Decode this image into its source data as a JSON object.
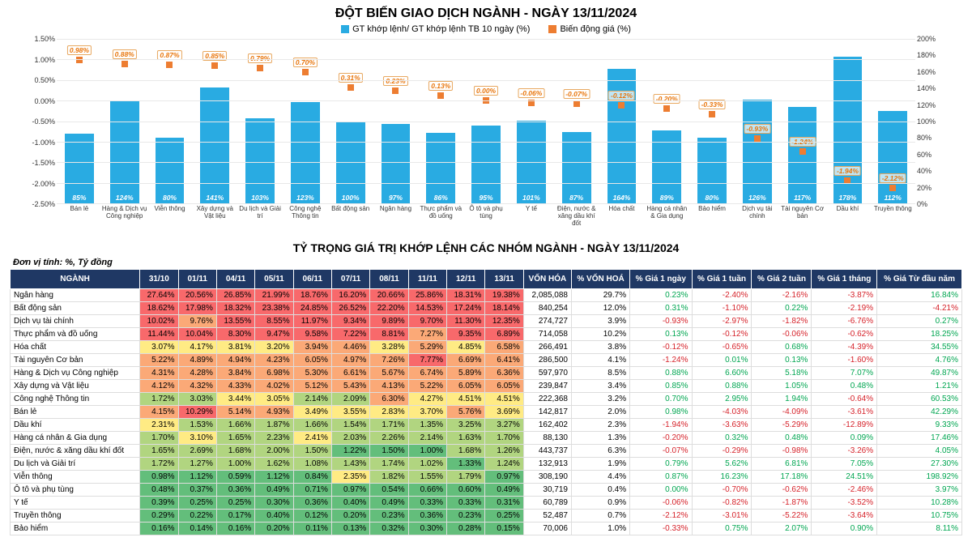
{
  "chart": {
    "title": "ĐỘT BIẾN GIAO DỊCH NGÀNH - NGÀY 13/11/2024",
    "legend1": "GT khớp lệnh/ GT khớp lệnh TB 10 ngày (%)",
    "legend2": "Biến động giá (%)",
    "bar_color": "#29abe2",
    "point_color": "#ed7d31",
    "left_axis": {
      "min": -2.5,
      "max": 1.5,
      "step": 0.5
    },
    "right_axis": {
      "min": 0,
      "max": 200,
      "step": 20
    },
    "categories": [
      "Bán lẻ",
      "Hàng & Dịch vụ Công nghiệp",
      "Viễn thông",
      "Xây dựng và Vật liệu",
      "Du lịch và Giải trí",
      "Công nghệ Thông tin",
      "Bất động sản",
      "Ngân hàng",
      "Thực phẩm và đồ uống",
      "Ô tô và phụ tùng",
      "Y tế",
      "Điện, nước & xăng dầu khí đốt",
      "Hóa chất",
      "Hàng cá nhân & Gia dụng",
      "Bảo hiểm",
      "Dịch vụ tài chính",
      "Tài nguyên Cơ bản",
      "Dầu khí",
      "Truyền thông"
    ],
    "bars_pct": [
      85,
      124,
      80,
      141,
      103,
      123,
      100,
      97,
      86,
      95,
      101,
      87,
      164,
      89,
      80,
      126,
      117,
      178,
      112
    ],
    "price_change": [
      0.98,
      0.88,
      0.87,
      0.85,
      0.79,
      0.7,
      0.31,
      0.23,
      0.13,
      0.0,
      -0.06,
      -0.07,
      -0.12,
      -0.2,
      -0.33,
      -0.93,
      -1.24,
      -1.94,
      -2.12
    ]
  },
  "table": {
    "title": "TỶ TRỌNG GIÁ TRỊ KHỚP LỆNH CÁC NHÓM NGÀNH - NGÀY 13/11/2024",
    "unit": "Đơn vị tính: %, Tỷ đồng",
    "head_cat": "NGÀNH",
    "date_cols": [
      "31/10",
      "01/11",
      "04/11",
      "05/11",
      "06/11",
      "07/11",
      "08/11",
      "11/11",
      "12/11",
      "13/11"
    ],
    "vh_col": "VỐN HÓA",
    "pvh_col": "% VỐN HOÁ",
    "price_cols": [
      "% Giá 1 ngày",
      "% Giá 1 tuần",
      "% Giá 2 tuần",
      "% Giá 1 tháng",
      "% Giá Từ đầu năm"
    ],
    "heat_colors": {
      "high": "#f8696b",
      "mid_high": "#fba977",
      "mid": "#ffeb84",
      "mid_low": "#b1d580",
      "low": "#63be7b"
    },
    "pos_color": "#00a651",
    "neg_color": "#d6222a",
    "rows": [
      {
        "n": "Ngân hàng",
        "d": [
          27.64,
          20.56,
          26.85,
          21.99,
          18.76,
          16.2,
          20.66,
          25.86,
          18.31,
          19.38
        ],
        "vh": "2,085,088",
        "pvh": 29.7,
        "p": [
          0.23,
          -2.4,
          -2.16,
          -3.87,
          16.84
        ]
      },
      {
        "n": "Bất động sản",
        "d": [
          18.62,
          17.98,
          18.32,
          23.38,
          24.85,
          26.52,
          22.2,
          14.53,
          17.24,
          18.14
        ],
        "vh": "840,254",
        "pvh": 12.0,
        "p": [
          0.31,
          -1.1,
          0.22,
          -2.19,
          -4.21
        ]
      },
      {
        "n": "Dịch vụ tài chính",
        "d": [
          10.02,
          9.76,
          13.55,
          8.55,
          11.97,
          9.34,
          9.89,
          9.7,
          11.3,
          12.35
        ],
        "vh": "274,727",
        "pvh": 3.9,
        "p": [
          -0.93,
          -2.97,
          -1.82,
          -6.76,
          0.27
        ]
      },
      {
        "n": "Thực phẩm và đồ uống",
        "d": [
          11.44,
          10.04,
          8.3,
          9.47,
          9.58,
          7.22,
          8.81,
          7.27,
          9.35,
          6.89
        ],
        "vh": "714,058",
        "pvh": 10.2,
        "p": [
          0.13,
          -0.12,
          -0.06,
          -0.62,
          18.25
        ]
      },
      {
        "n": "Hóa chất",
        "d": [
          3.07,
          4.17,
          3.81,
          3.2,
          3.94,
          4.46,
          3.28,
          5.29,
          4.85,
          6.58
        ],
        "vh": "266,491",
        "pvh": 3.8,
        "p": [
          -0.12,
          -0.65,
          0.68,
          -4.39,
          34.55
        ]
      },
      {
        "n": "Tài nguyên Cơ bản",
        "d": [
          5.22,
          4.89,
          4.94,
          4.23,
          6.05,
          4.97,
          7.26,
          7.77,
          6.69,
          6.41
        ],
        "vh": "286,500",
        "pvh": 4.1,
        "p": [
          -1.24,
          0.01,
          0.13,
          -1.6,
          4.76
        ]
      },
      {
        "n": "Hàng & Dịch vụ Công nghiệp",
        "d": [
          4.31,
          4.28,
          3.84,
          6.98,
          5.3,
          6.61,
          5.67,
          6.74,
          5.89,
          6.36
        ],
        "vh": "597,970",
        "pvh": 8.5,
        "p": [
          0.88,
          6.6,
          5.18,
          7.07,
          49.87
        ]
      },
      {
        "n": "Xây dựng và Vật liệu",
        "d": [
          4.12,
          4.32,
          4.33,
          4.02,
          5.12,
          5.43,
          4.13,
          5.22,
          6.05,
          6.05
        ],
        "vh": "239,847",
        "pvh": 3.4,
        "p": [
          0.85,
          0.88,
          1.05,
          0.48,
          1.21
        ]
      },
      {
        "n": "Công nghệ Thông tin",
        "d": [
          1.72,
          3.03,
          3.44,
          3.05,
          2.14,
          2.09,
          6.3,
          4.27,
          4.51,
          4.51
        ],
        "vh": "222,368",
        "pvh": 3.2,
        "p": [
          0.7,
          2.95,
          1.94,
          -0.64,
          60.53
        ]
      },
      {
        "n": "Bán lẻ",
        "d": [
          4.15,
          10.29,
          5.14,
          4.93,
          3.49,
          3.55,
          2.83,
          3.7,
          5.76,
          3.69
        ],
        "vh": "142,817",
        "pvh": 2.0,
        "p": [
          0.98,
          -4.03,
          -4.09,
          -3.61,
          42.29
        ]
      },
      {
        "n": "Dầu khí",
        "d": [
          2.31,
          1.53,
          1.66,
          1.87,
          1.66,
          1.54,
          1.71,
          1.35,
          3.25,
          3.27
        ],
        "vh": "162,402",
        "pvh": 2.3,
        "p": [
          -1.94,
          -3.63,
          -5.29,
          -12.89,
          9.33
        ]
      },
      {
        "n": "Hàng cá nhân & Gia dụng",
        "d": [
          1.7,
          3.1,
          1.65,
          2.23,
          2.41,
          2.03,
          2.26,
          2.14,
          1.63,
          1.7
        ],
        "vh": "88,130",
        "pvh": 1.3,
        "p": [
          -0.2,
          0.32,
          0.48,
          0.09,
          17.46
        ]
      },
      {
        "n": "Điện, nước & xăng dầu khí đốt",
        "d": [
          1.65,
          2.69,
          1.68,
          2.0,
          1.5,
          1.22,
          1.5,
          1.0,
          1.68,
          1.26
        ],
        "vh": "443,737",
        "pvh": 6.3,
        "p": [
          -0.07,
          -0.29,
          -0.98,
          -3.26,
          4.05
        ]
      },
      {
        "n": "Du lịch và Giải trí",
        "d": [
          1.72,
          1.27,
          1.0,
          1.62,
          1.08,
          1.43,
          1.74,
          1.02,
          1.33,
          1.24
        ],
        "vh": "132,913",
        "pvh": 1.9,
        "p": [
          0.79,
          5.62,
          6.81,
          7.05,
          27.3
        ]
      },
      {
        "n": "Viễn thông",
        "d": [
          0.98,
          1.12,
          0.59,
          1.12,
          0.84,
          2.35,
          1.82,
          1.55,
          1.79,
          0.97
        ],
        "vh": "308,190",
        "pvh": 4.4,
        "p": [
          0.87,
          16.23,
          17.18,
          24.51,
          198.92
        ]
      },
      {
        "n": "Ô tô và phụ tùng",
        "d": [
          0.48,
          0.37,
          0.36,
          0.49,
          0.71,
          0.97,
          0.54,
          0.66,
          0.6,
          0.49
        ],
        "vh": "30,719",
        "pvh": 0.4,
        "p": [
          0.0,
          -0.7,
          -0.62,
          -2.46,
          3.97
        ]
      },
      {
        "n": "Y tế",
        "d": [
          0.39,
          0.25,
          0.25,
          0.3,
          0.36,
          0.4,
          0.49,
          0.33,
          0.33,
          0.31
        ],
        "vh": "60,789",
        "pvh": 0.9,
        "p": [
          -0.06,
          -0.82,
          -1.87,
          -3.52,
          10.28
        ]
      },
      {
        "n": "Truyền thông",
        "d": [
          0.29,
          0.22,
          0.17,
          0.4,
          0.12,
          0.2,
          0.23,
          0.36,
          0.23,
          0.25
        ],
        "vh": "52,487",
        "pvh": 0.7,
        "p": [
          -2.12,
          -3.01,
          -5.22,
          -3.64,
          10.75
        ]
      },
      {
        "n": "Bảo hiểm",
        "d": [
          0.16,
          0.14,
          0.16,
          0.2,
          0.11,
          0.13,
          0.32,
          0.3,
          0.28,
          0.15
        ],
        "vh": "70,006",
        "pvh": 1.0,
        "p": [
          -0.33,
          0.75,
          2.07,
          0.9,
          8.11
        ]
      }
    ]
  }
}
